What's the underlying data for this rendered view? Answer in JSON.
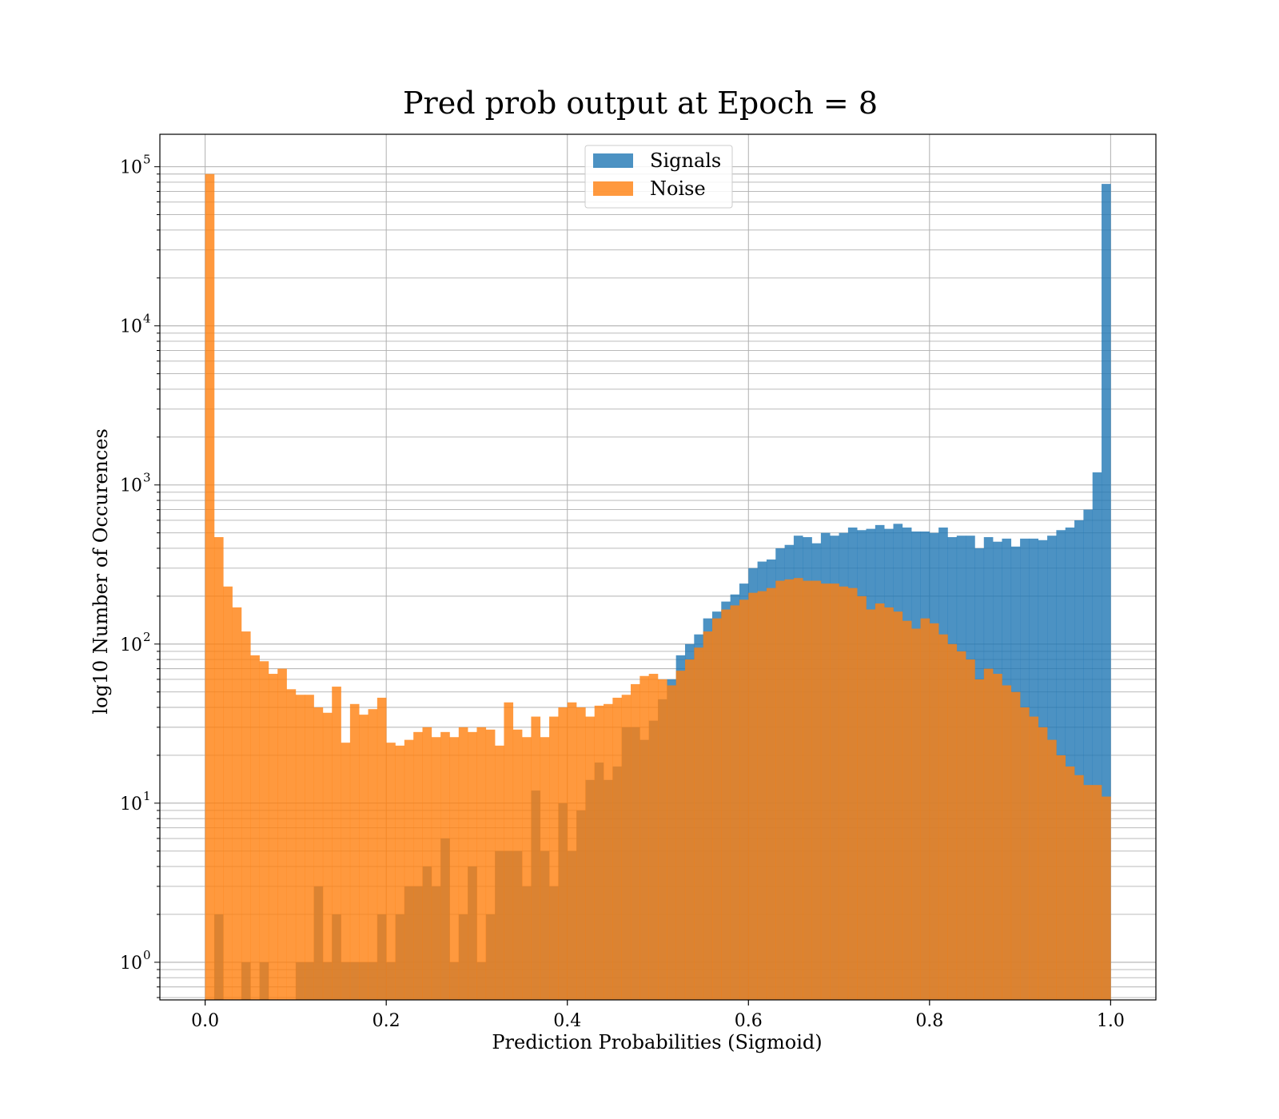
{
  "chart_data": {
    "type": "bar",
    "title": "Pred prob output at Epoch = 8",
    "xlabel": "Prediction Probabilities (Sigmoid)",
    "ylabel": "log10 Number of Occurences",
    "xlim": [
      -0.05,
      1.05
    ],
    "ylim": [
      0.58,
      160000
    ],
    "yscale": "log",
    "grid": true,
    "legend_position": "top-center",
    "bin_width": 0.01,
    "x_bin_starts": [
      0.0,
      0.01,
      0.02,
      0.03,
      0.04,
      0.05,
      0.06,
      0.07,
      0.08,
      0.09,
      0.1,
      0.11,
      0.12,
      0.13,
      0.14,
      0.15,
      0.16,
      0.17,
      0.18,
      0.19,
      0.2,
      0.21,
      0.22,
      0.23,
      0.24,
      0.25,
      0.26,
      0.27,
      0.28,
      0.29,
      0.3,
      0.31,
      0.32,
      0.33,
      0.34,
      0.35,
      0.36,
      0.37,
      0.38,
      0.39,
      0.4,
      0.41,
      0.42,
      0.43,
      0.44,
      0.45,
      0.46,
      0.47,
      0.48,
      0.49,
      0.5,
      0.51,
      0.52,
      0.53,
      0.54,
      0.55,
      0.56,
      0.57,
      0.58,
      0.59,
      0.6,
      0.61,
      0.62,
      0.63,
      0.64,
      0.65,
      0.66,
      0.67,
      0.68,
      0.69,
      0.7,
      0.71,
      0.72,
      0.73,
      0.74,
      0.75,
      0.76,
      0.77,
      0.78,
      0.79,
      0.8,
      0.81,
      0.82,
      0.83,
      0.84,
      0.85,
      0.86,
      0.87,
      0.88,
      0.89,
      0.9,
      0.91,
      0.92,
      0.93,
      0.94,
      0.95,
      0.96,
      0.97,
      0.98,
      0.99
    ],
    "x_ticks": [
      0.0,
      0.2,
      0.4,
      0.6,
      0.8,
      1.0
    ],
    "x_tick_labels": [
      "0.0",
      "0.2",
      "0.4",
      "0.6",
      "0.8",
      "1.0"
    ],
    "y_ticks": [
      1,
      10,
      100,
      1000,
      10000,
      100000
    ],
    "y_tick_labels": [
      {
        "base": "10",
        "exp": "0"
      },
      {
        "base": "10",
        "exp": "1"
      },
      {
        "base": "10",
        "exp": "2"
      },
      {
        "base": "10",
        "exp": "3"
      },
      {
        "base": "10",
        "exp": "4"
      },
      {
        "base": "10",
        "exp": "5"
      }
    ],
    "series": [
      {
        "name": "Signals",
        "color": "#1f77b4",
        "alpha": 0.8,
        "values": [
          0,
          2,
          0,
          0,
          1,
          0,
          1,
          0,
          0,
          0,
          1,
          1,
          3,
          1,
          2,
          1,
          1,
          1,
          1,
          2,
          1,
          2,
          3,
          3,
          4,
          3,
          6,
          1,
          2,
          4,
          1,
          2,
          5,
          5,
          5,
          3,
          12,
          5,
          3,
          10,
          5,
          9,
          14,
          18,
          14,
          17,
          30,
          30,
          25,
          33,
          45,
          60,
          85,
          100,
          115,
          145,
          160,
          185,
          205,
          240,
          300,
          330,
          340,
          400,
          420,
          480,
          470,
          430,
          500,
          480,
          500,
          540,
          520,
          530,
          560,
          530,
          570,
          540,
          510,
          510,
          500,
          540,
          470,
          480,
          480,
          400,
          470,
          440,
          460,
          410,
          460,
          460,
          450,
          480,
          520,
          540,
          600,
          700,
          1200,
          78000
        ]
      },
      {
        "name": "Noise",
        "color": "#ff7f0e",
        "alpha": 0.8,
        "values": [
          90000,
          470,
          230,
          170,
          120,
          85,
          78,
          65,
          70,
          52,
          48,
          48,
          40,
          37,
          54,
          24,
          42,
          36,
          39,
          46,
          24,
          23,
          25,
          28,
          30,
          26,
          28,
          26,
          30,
          28,
          30,
          29,
          23,
          43,
          29,
          26,
          35,
          26,
          35,
          40,
          43,
          40,
          35,
          41,
          42,
          46,
          48,
          56,
          63,
          65,
          60,
          55,
          68,
          80,
          95,
          120,
          145,
          165,
          175,
          190,
          210,
          215,
          225,
          250,
          255,
          260,
          250,
          250,
          240,
          240,
          230,
          225,
          200,
          165,
          180,
          170,
          160,
          140,
          125,
          145,
          135,
          115,
          100,
          90,
          80,
          60,
          70,
          65,
          55,
          50,
          40,
          35,
          30,
          25,
          20,
          17,
          15,
          13,
          13,
          11
        ]
      }
    ]
  }
}
